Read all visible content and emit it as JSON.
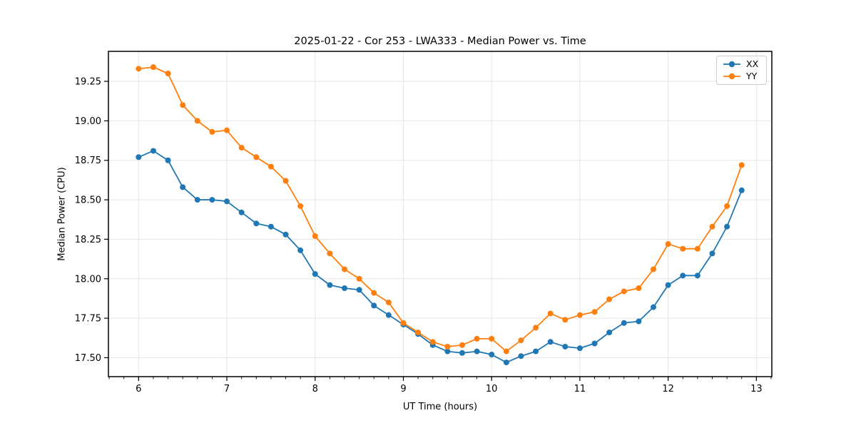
{
  "figure": {
    "title": "2025-01-22 - Cor 253 - LWA333 - Median Power vs. Time"
  },
  "chart_data": {
    "type": "line",
    "title": "2025-01-22 - Cor 253 - LWA333 - Median Power vs. Time",
    "xlabel": "UT Time (hours)",
    "ylabel": "Median Power (CPU)",
    "x": [
      6.0,
      6.1667,
      6.3333,
      6.5,
      6.6667,
      6.8333,
      7.0,
      7.1667,
      7.3333,
      7.5,
      7.6667,
      7.8333,
      8.0,
      8.1667,
      8.3333,
      8.5,
      8.6667,
      8.8333,
      9.0,
      9.1667,
      9.3333,
      9.5,
      9.6667,
      9.8333,
      10.0,
      10.1667,
      10.3333,
      10.5,
      10.6667,
      10.8333,
      11.0,
      11.1667,
      11.3333,
      11.5,
      11.6667,
      11.8333,
      12.0,
      12.1667,
      12.3333,
      12.5,
      12.6667,
      12.8333
    ],
    "series": [
      {
        "name": "XX",
        "color": "#1f77b4",
        "values": [
          18.77,
          18.81,
          18.75,
          18.58,
          18.5,
          18.5,
          18.49,
          18.42,
          18.35,
          18.33,
          18.28,
          18.18,
          18.03,
          17.96,
          17.94,
          17.93,
          17.83,
          17.77,
          17.71,
          17.65,
          17.58,
          17.54,
          17.53,
          17.54,
          17.52,
          17.47,
          17.51,
          17.54,
          17.6,
          17.57,
          17.56,
          17.59,
          17.66,
          17.72,
          17.73,
          17.82,
          17.96,
          18.02,
          18.02,
          18.16,
          18.33,
          18.56
        ]
      },
      {
        "name": "YY",
        "color": "#ff7f0e",
        "values": [
          19.33,
          19.34,
          19.3,
          19.1,
          19.0,
          18.93,
          18.94,
          18.83,
          18.77,
          18.71,
          18.62,
          18.46,
          18.27,
          18.16,
          18.06,
          18.0,
          17.91,
          17.85,
          17.72,
          17.66,
          17.6,
          17.57,
          17.58,
          17.62,
          17.62,
          17.54,
          17.61,
          17.69,
          17.78,
          17.74,
          17.77,
          17.79,
          17.87,
          17.92,
          17.94,
          18.06,
          18.22,
          18.19,
          18.19,
          18.33,
          18.46,
          18.72
        ]
      }
    ],
    "xlim": [
      5.658,
      13.175
    ],
    "ylim": [
      17.38,
      19.44
    ],
    "xticks": [
      "6",
      "7",
      "8",
      "9",
      "10",
      "11",
      "12",
      "13"
    ],
    "yticks": [
      "17.50",
      "17.75",
      "18.00",
      "18.25",
      "18.50",
      "18.75",
      "19.00",
      "19.25"
    ],
    "minor_xtick_step": 0.166667,
    "grid": true,
    "grid_color": "#e5e5e5",
    "legend_position": "upper right",
    "legend_labels": [
      "XX",
      "YY"
    ]
  }
}
